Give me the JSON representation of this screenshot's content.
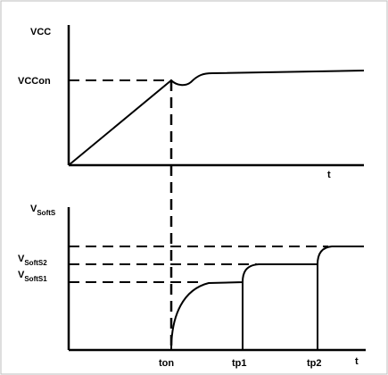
{
  "chart_data": [
    {
      "type": "line",
      "title": "",
      "ylabel": "VCC",
      "xlabel": "t",
      "y_levels": [
        {
          "name": "VCCon",
          "label": "VCCon"
        }
      ],
      "series": [
        {
          "points": [
            {
              "x": 0,
              "y": 0
            },
            {
              "x": 1,
              "y": 1
            },
            {
              "x": 1.08,
              "y": 0.96
            },
            {
              "x": 1.22,
              "y": 1.02
            },
            {
              "x": 1.35,
              "y": 1.07
            },
            {
              "x": 3.25,
              "y": 1.11
            }
          ]
        }
      ],
      "annotations": [
        "dashed level line at VCCon",
        "dashed vertical line at ton"
      ]
    },
    {
      "type": "line",
      "title": "",
      "ylabel": {
        "main": "V",
        "sub": "SoftS"
      },
      "xlabel": "t",
      "x_ticks": [
        {
          "name": "ton",
          "label": "ton"
        },
        {
          "name": "tp1",
          "label": "tp1"
        },
        {
          "name": "tp2",
          "label": "tp2"
        }
      ],
      "y_levels": [
        {
          "name": "VSoftS1",
          "main": "V",
          "sub": "SoftS1"
        },
        {
          "name": "VSoftS2",
          "main": "V",
          "sub": "SoftS2"
        },
        {
          "name": "VSoftS",
          "main": "",
          "sub": ""
        }
      ],
      "series": [
        {
          "description": "soft-start voltage rising in steps",
          "points": [
            {
              "x": "ton",
              "y": 0
            },
            {
              "x": "ton+",
              "y": "VSoftS1"
            },
            {
              "x": "tp1",
              "y": "VSoftS1"
            },
            {
              "x": "tp1+",
              "y": "VSoftS2"
            },
            {
              "x": "tp2",
              "y": "VSoftS2"
            },
            {
              "x": "tp2+",
              "y": "VSoftS"
            },
            {
              "x": "end",
              "y": "VSoftS"
            }
          ]
        }
      ],
      "annotations": [
        "dashed level lines at VSoftS1, VSoftS2, VSoftS",
        "solid vertical lines at tp1 and tp2"
      ]
    }
  ]
}
